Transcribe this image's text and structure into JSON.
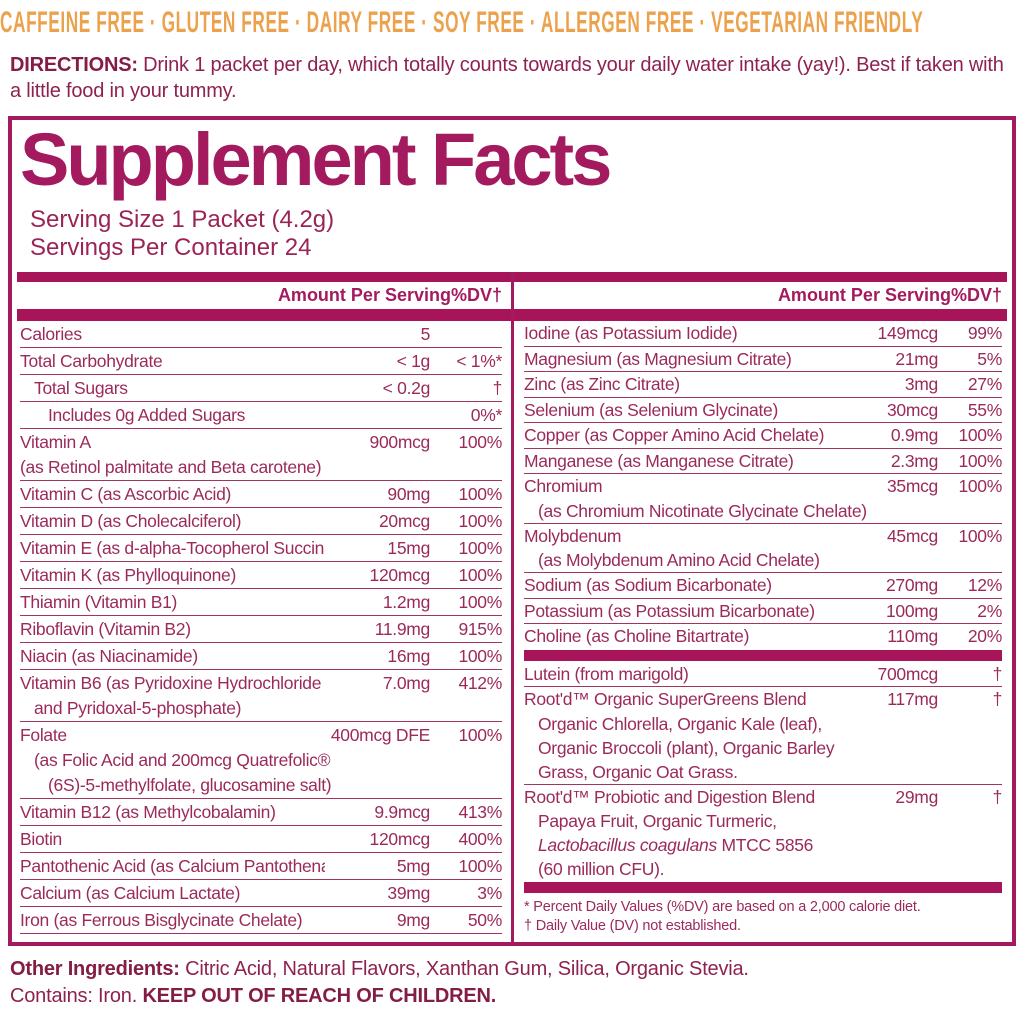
{
  "banner": {
    "text": "CAFFEINE FREE · GLUTEN FREE · DAIRY FREE · SOY FREE · ALLERGEN FREE · VEGETARIAN FRIENDLY"
  },
  "directions": {
    "label": "DIRECTIONS:",
    "text": " Drink 1 packet per day, which totally counts towards your daily water intake (yay!). Best if taken with a little food in your tummy."
  },
  "supplement_facts": {
    "title": "Supplement Facts",
    "serving_size": "Serving Size 1 Packet (4.2g)",
    "servings_per_container": "Servings Per Container 24",
    "column_header": {
      "amount": "Amount Per Serving",
      "dv": "%DV†"
    },
    "left_rows": [
      {
        "label": "Calories",
        "amount": "5",
        "dv": ""
      },
      {
        "label": "Total Carbohydrate",
        "amount": "< 1g",
        "dv": "< 1%*"
      },
      {
        "label": "Total Sugars",
        "indent": 1,
        "amount": "< 0.2g",
        "dv": "†"
      },
      {
        "label": "Includes 0g Added Sugars",
        "indent": 2,
        "amount": "",
        "dv": "0%*"
      },
      {
        "label": "Vitamin A",
        "amount": "900mcg",
        "dv": "100%",
        "subs": [
          {
            "text": "(as Retinol palmitate and Beta carotene)",
            "indent": 0
          }
        ]
      },
      {
        "label": "Vitamin C (as Ascorbic Acid)",
        "amount": "90mg",
        "dv": "100%"
      },
      {
        "label": "Vitamin D (as Cholecalciferol)",
        "amount": "20mcg",
        "dv": "100%"
      },
      {
        "label": "Vitamin E (as d-alpha-Tocopherol Succinate)",
        "amount": "15mg",
        "dv": "100%"
      },
      {
        "label": "Vitamin K (as Phylloquinone)",
        "amount": "120mcg",
        "dv": "100%"
      },
      {
        "label": "Thiamin (Vitamin B1)",
        "amount": "1.2mg",
        "dv": "100%"
      },
      {
        "label": "Riboflavin (Vitamin B2)",
        "amount": "11.9mg",
        "dv": "915%"
      },
      {
        "label": "Niacin (as Niacinamide)",
        "amount": "16mg",
        "dv": "100%"
      },
      {
        "label": "Vitamin B6 (as Pyridoxine Hydrochloride",
        "amount": "7.0mg",
        "dv": "412%",
        "subs": [
          {
            "text": "and Pyridoxal-5-phosphate)",
            "indent": 1
          }
        ]
      },
      {
        "label": "Folate",
        "amount": "400mcg DFE",
        "dv": "100%",
        "subs": [
          {
            "text": "(as Folic Acid and 200mcg Quatrefolic®",
            "indent": 1
          },
          {
            "text": "(6S)-5-methylfolate, glucosamine salt)",
            "indent": 2
          }
        ]
      },
      {
        "label": "Vitamin B12 (as Methylcobalamin)",
        "amount": "9.9mcg",
        "dv": "413%"
      },
      {
        "label": "Biotin",
        "amount": "120mcg",
        "dv": "400%"
      },
      {
        "label": "Pantothenic Acid (as Calcium Pantothenate)",
        "amount": "5mg",
        "dv": "100%"
      },
      {
        "label": "Calcium (as Calcium Lactate)",
        "amount": "39mg",
        "dv": "3%"
      },
      {
        "label": "Iron (as Ferrous Bisglycinate Chelate)",
        "amount": "9mg",
        "dv": "50%"
      }
    ],
    "right_rows": [
      {
        "label": "Iodine (as Potassium Iodide)",
        "amount": "149mcg",
        "dv": "99%"
      },
      {
        "label": "Magnesium (as Magnesium Citrate)",
        "amount": "21mg",
        "dv": "5%"
      },
      {
        "label": "Zinc (as Zinc Citrate)",
        "amount": "3mg",
        "dv": "27%"
      },
      {
        "label": "Selenium (as Selenium Glycinate)",
        "amount": "30mcg",
        "dv": "55%"
      },
      {
        "label": "Copper (as Copper Amino Acid Chelate)",
        "amount": "0.9mg",
        "dv": "100%"
      },
      {
        "label": "Manganese (as Manganese Citrate)",
        "amount": "2.3mg",
        "dv": "100%"
      },
      {
        "label": "Chromium",
        "amount": "35mcg",
        "dv": "100%",
        "subs": [
          {
            "text": "(as Chromium Nicotinate Glycinate Chelate)",
            "indent": 1
          }
        ]
      },
      {
        "label": "Molybdenum",
        "amount": "45mcg",
        "dv": "100%",
        "subs": [
          {
            "text": "(as Molybdenum Amino Acid Chelate)",
            "indent": 1
          }
        ]
      },
      {
        "label": "Sodium (as Sodium Bicarbonate)",
        "amount": "270mg",
        "dv": "12%"
      },
      {
        "label": "Potassium (as Potassium Bicarbonate)",
        "amount": "100mg",
        "dv": "2%"
      },
      {
        "label": "Choline (as Choline Bitartrate)",
        "amount": "110mg",
        "dv": "20%",
        "bar_after": true
      },
      {
        "label": "Lutein (from marigold)",
        "amount": "700mcg",
        "dv": "†"
      },
      {
        "label": "Root'd™ Organic SuperGreens Blend",
        "amount": "117mg",
        "dv": "†",
        "subs": [
          {
            "text": "Organic Chlorella, Organic Kale (leaf),",
            "indent": 1
          },
          {
            "text": "Organic Broccoli (plant), Organic Barley",
            "indent": 1
          },
          {
            "text": "Grass, Organic Oat Grass.",
            "indent": 1
          }
        ]
      },
      {
        "label": "Root'd™ Probiotic and Digestion Blend",
        "amount": "29mg",
        "dv": "†",
        "subs": [
          {
            "text": "Papaya Fruit, Organic Turmeric,",
            "indent": 1
          },
          {
            "italic": "Lactobacillus coagulans",
            "text": " MTCC 5856",
            "indent": 1
          },
          {
            "text": "(60 million CFU).",
            "indent": 1
          }
        ],
        "bar_after": true
      }
    ],
    "footnotes": [
      "* Percent Daily Values (%DV) are based on a 2,000 calorie diet.",
      "† Daily Value (DV) not established."
    ]
  },
  "other_ingredients": {
    "label": "Other Ingredients:",
    "text": " Citric Acid, Natural Flavors, Xanthan Gum, Silica, Organic Stevia."
  },
  "contains": {
    "text": "Contains: Iron. ",
    "warning": "KEEP OUT OF REACH OF CHILDREN."
  },
  "colors": {
    "berry": "#A41A5E",
    "bar": "#A81459",
    "banner_orange": "#ECA24D",
    "body_text": "#9B2A5B"
  }
}
